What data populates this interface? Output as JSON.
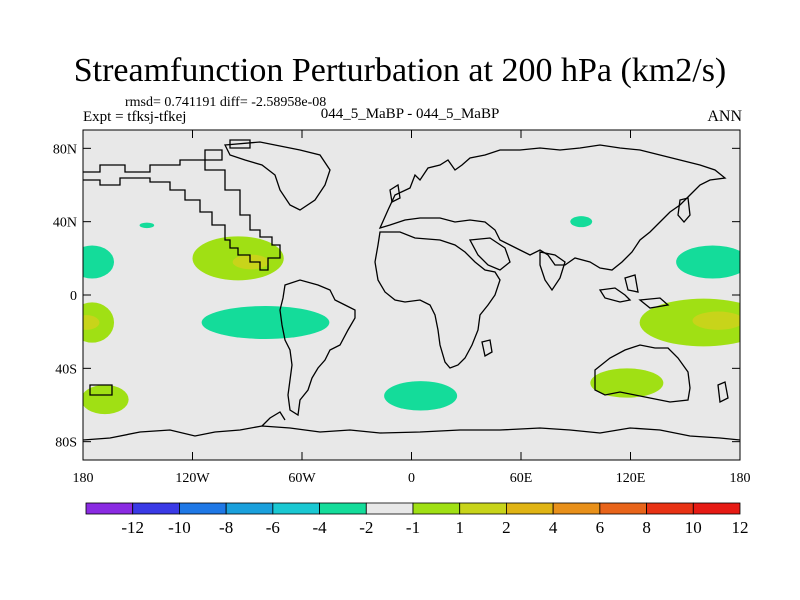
{
  "chart_data": {
    "type": "contour-map",
    "title": "Streamfunction Perturbation at 200 hPa (km2/s)",
    "stats_text": "rmsd= 0.741191 diff= -2.58958e-08",
    "left_label": "Expt = tfksj-tfkej",
    "center_label": "044_5_MaBP - 044_5_MaBP",
    "right_label": "ANN",
    "x_axis": {
      "range": [
        -180,
        180
      ],
      "ticks": [
        {
          "value": -180,
          "label": "180"
        },
        {
          "value": -120,
          "label": "120W"
        },
        {
          "value": -60,
          "label": "60W"
        },
        {
          "value": 0,
          "label": "0"
        },
        {
          "value": 60,
          "label": "60E"
        },
        {
          "value": 120,
          "label": "120E"
        },
        {
          "value": 180,
          "label": "180"
        }
      ]
    },
    "y_axis": {
      "range": [
        -90,
        90
      ],
      "ticks": [
        {
          "value": 80,
          "label": "80N"
        },
        {
          "value": 40,
          "label": "40N"
        },
        {
          "value": 0,
          "label": "0"
        },
        {
          "value": -40,
          "label": "40S"
        },
        {
          "value": -80,
          "label": "80S"
        }
      ]
    },
    "colorbar": {
      "colors": [
        "#8a2be2",
        "#3a3ae6",
        "#1f78e6",
        "#1aa0dc",
        "#1ac8d2",
        "#14dc9a",
        "#e8e8e8",
        "#a0e014",
        "#c8d41a",
        "#e0b414",
        "#e8901a",
        "#e8641a",
        "#e83214",
        "#e61a14"
      ],
      "labels": [
        "-12",
        "-10",
        "-8",
        "-6",
        "-4",
        "-2",
        "-1",
        "1",
        "2",
        "4",
        "6",
        "8",
        "10",
        "12"
      ]
    },
    "regions": [
      {
        "level": "2",
        "color": "#a0e014",
        "center": [
          -95,
          20
        ],
        "radius": [
          25,
          12
        ]
      },
      {
        "level": "4",
        "color": "#c8d41a",
        "center": [
          -88,
          18
        ],
        "radius": [
          10,
          4
        ]
      },
      {
        "level": "-2",
        "color": "#14dc9a",
        "center": [
          -80,
          -15
        ],
        "radius": [
          35,
          9
        ]
      },
      {
        "level": "-2",
        "color": "#14dc9a",
        "center": [
          -175,
          18
        ],
        "radius": [
          12,
          9
        ]
      },
      {
        "level": "-2",
        "color": "#14dc9a",
        "center": [
          -145,
          38
        ],
        "radius": [
          4,
          1.5
        ]
      },
      {
        "level": "2",
        "color": "#a0e014",
        "center": [
          -175,
          -15
        ],
        "radius": [
          12,
          11
        ]
      },
      {
        "level": "4",
        "color": "#c8d41a",
        "center": [
          -178,
          -15
        ],
        "radius": [
          7,
          4
        ]
      },
      {
        "level": "2",
        "color": "#a0e014",
        "center": [
          -168,
          -57
        ],
        "radius": [
          13,
          8
        ]
      },
      {
        "level": "-2",
        "color": "#14dc9a",
        "center": [
          5,
          -55
        ],
        "radius": [
          20,
          8
        ]
      },
      {
        "level": "-2",
        "color": "#14dc9a",
        "center": [
          93,
          40
        ],
        "radius": [
          6,
          3
        ]
      },
      {
        "level": "-2",
        "color": "#14dc9a",
        "center": [
          165,
          18
        ],
        "radius": [
          20,
          9
        ]
      },
      {
        "level": "2",
        "color": "#a0e014",
        "center": [
          160,
          -15
        ],
        "radius": [
          35,
          13
        ]
      },
      {
        "level": "4",
        "color": "#c8d41a",
        "center": [
          168,
          -14
        ],
        "radius": [
          14,
          5
        ]
      },
      {
        "level": "2",
        "color": "#a0e014",
        "center": [
          118,
          -48
        ],
        "radius": [
          20,
          8
        ]
      }
    ]
  }
}
